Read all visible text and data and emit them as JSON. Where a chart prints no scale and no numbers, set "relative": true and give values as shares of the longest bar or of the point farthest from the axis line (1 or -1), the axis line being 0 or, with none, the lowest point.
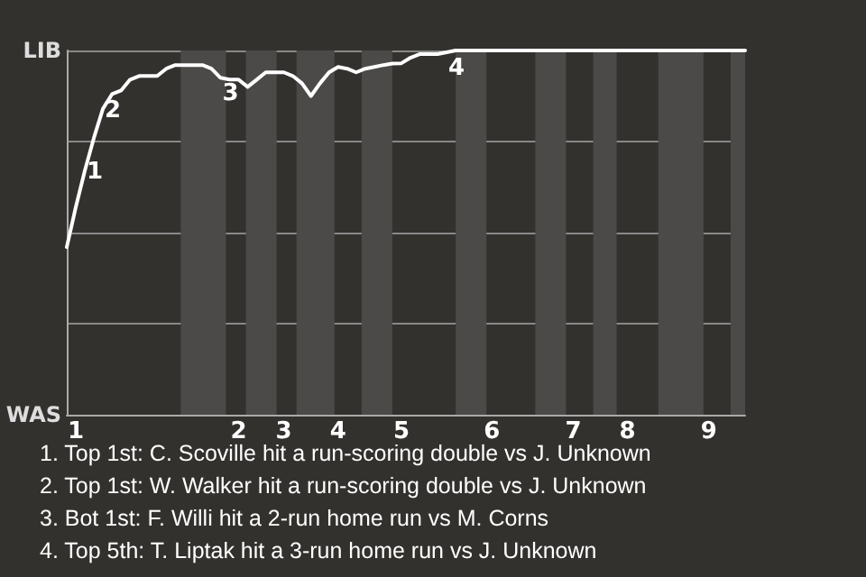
{
  "chart_data": {
    "type": "line",
    "relative": true,
    "categories": [
      null,
      "1",
      null,
      null,
      null,
      null,
      null,
      null,
      null,
      null,
      null,
      null,
      null,
      null,
      null,
      null,
      null,
      null,
      null,
      "2",
      null,
      null,
      null,
      null,
      "3",
      null,
      null,
      null,
      null,
      null,
      "4",
      null,
      null,
      null,
      null,
      null,
      null,
      "5",
      null,
      null,
      null,
      null,
      null,
      null,
      null,
      null,
      null,
      "6",
      null,
      null,
      null,
      null,
      null,
      null,
      null,
      null,
      "7",
      null,
      null,
      null,
      null,
      null,
      "8",
      null,
      null,
      null,
      null,
      null,
      null,
      null,
      null,
      "9",
      null,
      null,
      null,
      null
    ],
    "series": [
      {
        "color": "#ffffff",
        "values": [
          0.46,
          0.57,
          0.67,
          0.76,
          0.84,
          0.88,
          0.89,
          0.92,
          0.93,
          0.93,
          0.93,
          0.95,
          0.96,
          0.96,
          0.96,
          0.96,
          0.95,
          0.925,
          0.92,
          0.92,
          0.9,
          0.92,
          0.94,
          0.94,
          0.94,
          0.93,
          0.91,
          0.875,
          0.91,
          0.94,
          0.955,
          0.95,
          0.94,
          0.95,
          0.955,
          0.96,
          0.964,
          0.965,
          0.98,
          0.99,
          0.99,
          0.99,
          0.995,
          1,
          1,
          1,
          1,
          1,
          1,
          1,
          1,
          1,
          1,
          1,
          1,
          1,
          1,
          1,
          1,
          1,
          1,
          1,
          1,
          1,
          1,
          1,
          1,
          1,
          1,
          1,
          1,
          1,
          1,
          1,
          1,
          1
        ]
      }
    ],
    "grid": "y",
    "marker": "none",
    "annotations": [
      "LIB",
      "WAS",
      {
        "text": "1",
        "y": 0.67
      },
      {
        "text": "2",
        "y": 0.84
      },
      {
        "text": "3",
        "y": 0.925
      },
      {
        "text": "4",
        "y": 0.995
      },
      "1. Top 1st: C. Scoville hit a run-scoring double vs J. Unknown",
      "2. Top 1st: W. Walker hit a run-scoring double vs J. Unknown",
      "3. Bot 1st: F. Willi hit a 2-run home run vs M. Corns",
      "4. Top 5th: T. Liptak hit a 3-run home run vs J. Unknown"
    ]
  }
}
